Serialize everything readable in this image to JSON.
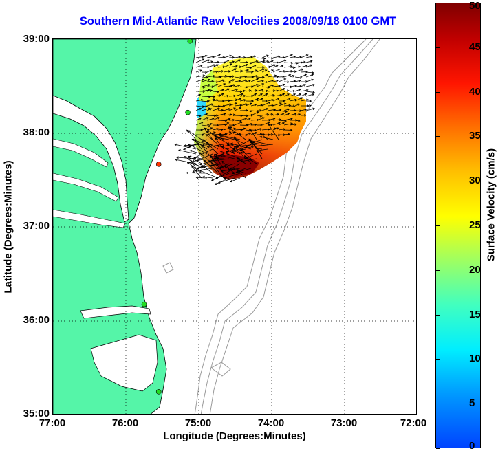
{
  "title": "Southern Mid-Atlantic Raw Velocities 2008/09/18 0100 GMT",
  "axes": {
    "x_label": "Longitude (Degrees:Minutes)",
    "y_label": "Latitude (Degrees:Minutes)",
    "x_ticks": [
      "77:00",
      "76:00",
      "75:00",
      "74:00",
      "73:00",
      "72:00"
    ],
    "y_ticks": [
      "39:00",
      "38:00",
      "37:00",
      "36:00",
      "35:00"
    ]
  },
  "colorbar": {
    "label": "Surface Velocity (cm/s)",
    "ticks": [
      "0",
      "5",
      "10",
      "15",
      "20",
      "25",
      "30",
      "35",
      "40",
      "45",
      "50"
    ],
    "range": [
      0,
      50
    ]
  },
  "colors": {
    "land": "#55f5a8",
    "title": "#0000ff",
    "bathymetry": "#9a9a9a",
    "station_green": "#22dd22",
    "station_red": "#ff3300"
  },
  "map": {
    "lon_range": [
      -77,
      -72
    ],
    "lat_range": [
      35,
      39
    ],
    "stations": [
      {
        "lon": -75.12,
        "lat": 38.98,
        "status": "active"
      },
      {
        "lon": -75.15,
        "lat": 38.22,
        "status": "active"
      },
      {
        "lon": -75.55,
        "lat": 37.67,
        "status": "offline"
      },
      {
        "lon": -75.75,
        "lat": 36.18,
        "status": "active"
      },
      {
        "lon": -75.55,
        "lat": 35.25,
        "status": "active"
      }
    ]
  }
}
